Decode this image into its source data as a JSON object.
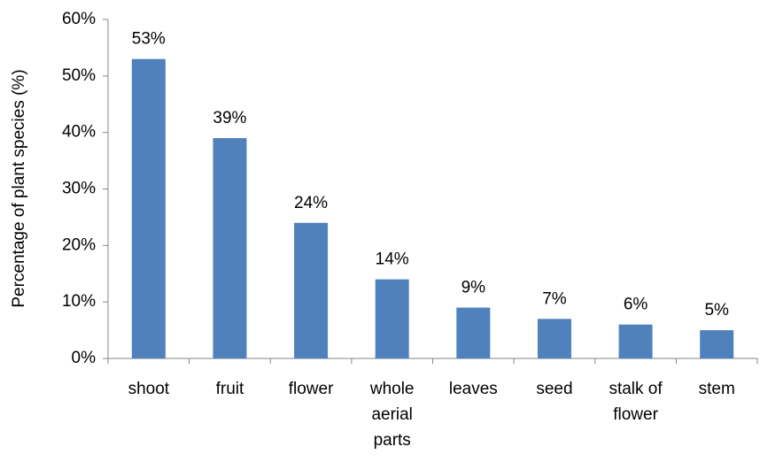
{
  "chart_data": {
    "type": "bar",
    "y_axis_label": "Percentage of plant species (%)",
    "categories": [
      "shoot",
      "fruit",
      "flower",
      "whole\naerial\nparts",
      "leaves",
      "seed",
      "stalk of\nflower",
      "stem"
    ],
    "values": [
      53,
      39,
      24,
      14,
      9,
      7,
      6,
      5
    ],
    "value_labels": [
      "53%",
      "39%",
      "24%",
      "14%",
      "9%",
      "7%",
      "6%",
      "5%"
    ],
    "color": "#4f81bd",
    "ylim": [
      0,
      60
    ],
    "yticks": [
      {
        "value": 0,
        "label": "0%"
      },
      {
        "value": 10,
        "label": "10%"
      },
      {
        "value": 20,
        "label": "20%"
      },
      {
        "value": 30,
        "label": "30%"
      },
      {
        "value": 40,
        "label": "40%"
      },
      {
        "value": 50,
        "label": "50%"
      },
      {
        "value": 60,
        "label": "60%"
      }
    ],
    "grid": false
  }
}
